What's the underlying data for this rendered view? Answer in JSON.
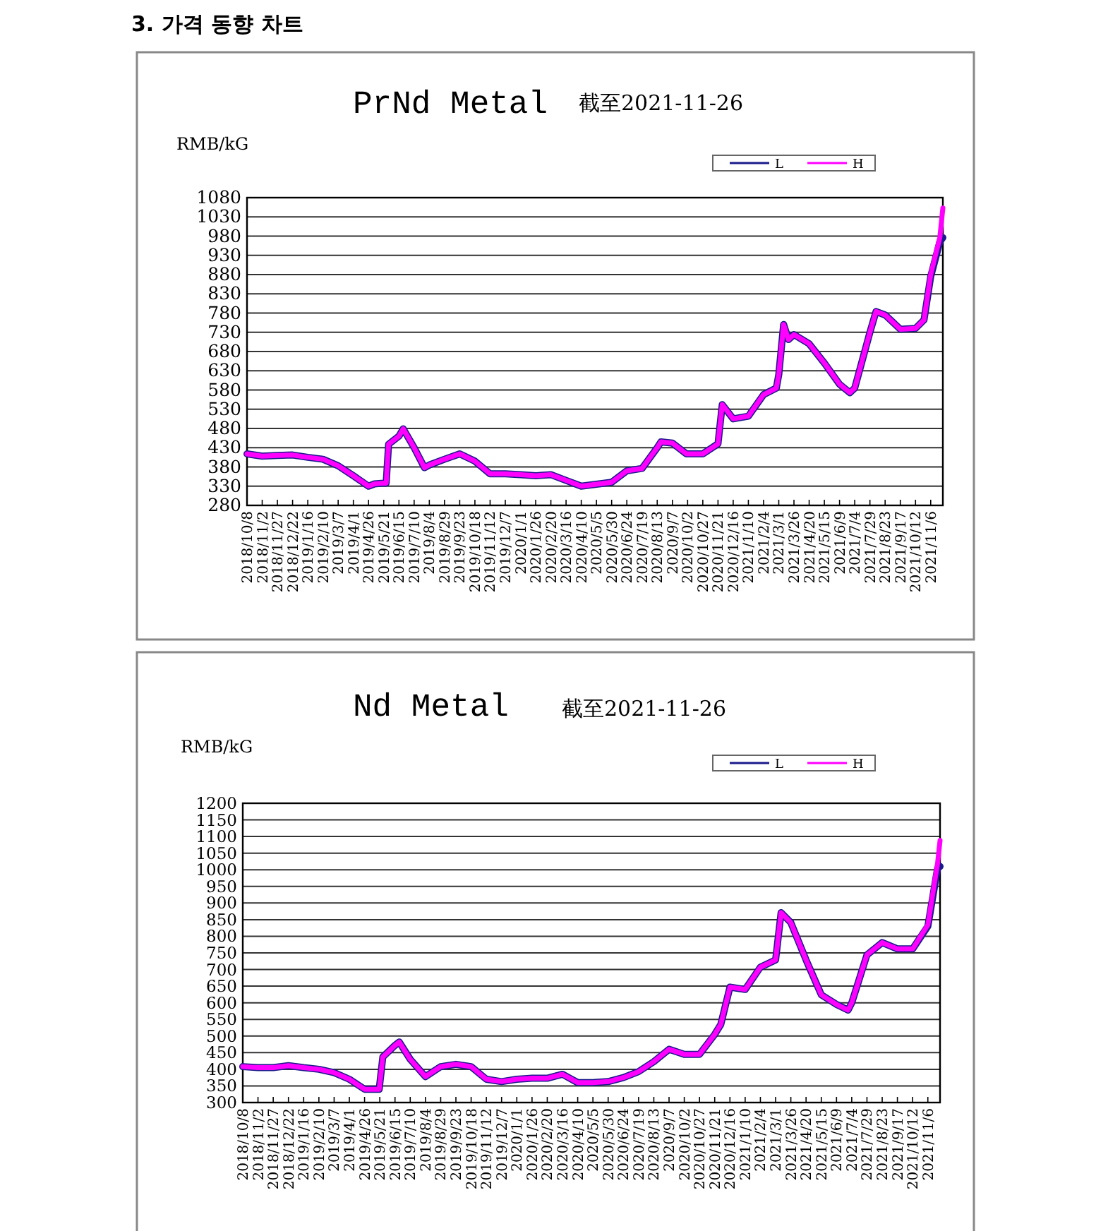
{
  "chart_data": [
    {
      "type": "line",
      "title": "PrNd Metal",
      "subtitle": "截至2021-11-26",
      "ylabel": "RMB/kG",
      "annotations": [
        "3. 가격 동향 차트"
      ],
      "grid": "y",
      "legend": "top right",
      "xlim": [
        "2018-10-08",
        "2021-11-26"
      ],
      "ylim": [
        280,
        1080
      ],
      "yticks": [
        280,
        330,
        380,
        430,
        480,
        530,
        580,
        630,
        680,
        730,
        780,
        830,
        880,
        930,
        980,
        1030,
        1080
      ],
      "xticks": [
        {
          "value": "2018-10-08",
          "label": "2018/10/8"
        },
        {
          "value": "2018-11-02",
          "label": "2018/11/2"
        },
        {
          "value": "2018-11-27",
          "label": "2018/11/27"
        },
        {
          "value": "2018-12-22",
          "label": "2018/12/22"
        },
        {
          "value": "2019-01-16",
          "label": "2019/1/16"
        },
        {
          "value": "2019-02-10",
          "label": "2019/2/10"
        },
        {
          "value": "2019-03-07",
          "label": "2019/3/7"
        },
        {
          "value": "2019-04-01",
          "label": "2019/4/1"
        },
        {
          "value": "2019-04-26",
          "label": "2019/4/26"
        },
        {
          "value": "2019-05-21",
          "label": "2019/5/21"
        },
        {
          "value": "2019-06-15",
          "label": "2019/6/15"
        },
        {
          "value": "2019-07-10",
          "label": "2019/7/10"
        },
        {
          "value": "2019-08-04",
          "label": "2019/8/4"
        },
        {
          "value": "2019-08-29",
          "label": "2019/8/29"
        },
        {
          "value": "2019-09-23",
          "label": "2019/9/23"
        },
        {
          "value": "2019-10-18",
          "label": "2019/10/18"
        },
        {
          "value": "2019-11-12",
          "label": "2019/11/12"
        },
        {
          "value": "2019-12-07",
          "label": "2019/12/7"
        },
        {
          "value": "2020-01-01",
          "label": "2020/1/1"
        },
        {
          "value": "2020-01-26",
          "label": "2020/1/26"
        },
        {
          "value": "2020-02-20",
          "label": "2020/2/20"
        },
        {
          "value": "2020-03-16",
          "label": "2020/3/16"
        },
        {
          "value": "2020-04-10",
          "label": "2020/4/10"
        },
        {
          "value": "2020-05-05",
          "label": "2020/5/5"
        },
        {
          "value": "2020-05-30",
          "label": "2020/5/30"
        },
        {
          "value": "2020-06-24",
          "label": "2020/6/24"
        },
        {
          "value": "2020-07-19",
          "label": "2020/7/19"
        },
        {
          "value": "2020-08-13",
          "label": "2020/8/13"
        },
        {
          "value": "2020-09-07",
          "label": "2020/9/7"
        },
        {
          "value": "2020-10-02",
          "label": "2020/10/2"
        },
        {
          "value": "2020-10-27",
          "label": "2020/10/27"
        },
        {
          "value": "2020-11-21",
          "label": "2020/11/21"
        },
        {
          "value": "2020-12-16",
          "label": "2020/12/16"
        },
        {
          "value": "2021-01-10",
          "label": "2021/1/10"
        },
        {
          "value": "2021-02-04",
          "label": "2021/2/4"
        },
        {
          "value": "2021-03-01",
          "label": "2021/3/1"
        },
        {
          "value": "2021-03-26",
          "label": "2021/3/26"
        },
        {
          "value": "2021-04-20",
          "label": "2021/4/20"
        },
        {
          "value": "2021-05-15",
          "label": "2021/5/15"
        },
        {
          "value": "2021-06-09",
          "label": "2021/6/9"
        },
        {
          "value": "2021-07-04",
          "label": "2021/7/4"
        },
        {
          "value": "2021-07-29",
          "label": "2021/7/29"
        },
        {
          "value": "2021-08-23",
          "label": "2021/8/23"
        },
        {
          "value": "2021-09-17",
          "label": "2021/9/17"
        },
        {
          "value": "2021-10-12",
          "label": "2021/10/12"
        },
        {
          "value": "2021-11-06",
          "label": "2021/11/6"
        }
      ],
      "series": [
        {
          "name": "L",
          "color": "#1a1a8c",
          "x": [
            "2018-10-08",
            "2018-11-02",
            "2018-11-27",
            "2018-12-22",
            "2019-01-16",
            "2019-02-10",
            "2019-03-07",
            "2019-04-01",
            "2019-04-26",
            "2019-05-06",
            "2019-05-21",
            "2019-05-25",
            "2019-05-29",
            "2019-06-15",
            "2019-06-22",
            "2019-07-10",
            "2019-07-27",
            "2019-08-04",
            "2019-08-29",
            "2019-09-23",
            "2019-10-18",
            "2019-11-12",
            "2019-12-07",
            "2020-01-01",
            "2020-01-26",
            "2020-02-20",
            "2020-03-16",
            "2020-04-10",
            "2020-05-05",
            "2020-05-30",
            "2020-06-24",
            "2020-07-19",
            "2020-08-13",
            "2020-08-19",
            "2020-09-07",
            "2020-09-30",
            "2020-10-27",
            "2020-11-21",
            "2020-11-28",
            "2020-12-16",
            "2021-01-10",
            "2021-02-04",
            "2021-02-25",
            "2021-03-01",
            "2021-03-09",
            "2021-03-17",
            "2021-03-26",
            "2021-04-20",
            "2021-05-15",
            "2021-06-09",
            "2021-06-26",
            "2021-07-04",
            "2021-07-29",
            "2021-08-08",
            "2021-08-23",
            "2021-09-17",
            "2021-10-12",
            "2021-10-26",
            "2021-11-06",
            "2021-11-21",
            "2021-11-26"
          ],
          "values": [
            414,
            408,
            410,
            411,
            405,
            400,
            383,
            357,
            330,
            336,
            338,
            338,
            439,
            460,
            479,
            430,
            378,
            385,
            400,
            414,
            395,
            362,
            362,
            360,
            357,
            360,
            345,
            330,
            335,
            340,
            370,
            376,
            430,
            445,
            442,
            414,
            414,
            440,
            542,
            505,
            512,
            568,
            585,
            620,
            750,
            711,
            724,
            700,
            650,
            595,
            573,
            585,
            730,
            784,
            775,
            738,
            740,
            762,
            875,
            965,
            976
          ]
        },
        {
          "name": "H",
          "color": "#ff00ff",
          "x": [
            "2018-10-08",
            "2018-11-02",
            "2018-11-27",
            "2018-12-22",
            "2019-01-16",
            "2019-02-10",
            "2019-03-07",
            "2019-04-01",
            "2019-04-26",
            "2019-05-06",
            "2019-05-21",
            "2019-05-25",
            "2019-05-29",
            "2019-06-15",
            "2019-06-22",
            "2019-07-10",
            "2019-07-27",
            "2019-08-04",
            "2019-08-29",
            "2019-09-23",
            "2019-10-18",
            "2019-11-12",
            "2019-12-07",
            "2020-01-01",
            "2020-01-26",
            "2020-02-20",
            "2020-03-16",
            "2020-04-10",
            "2020-05-05",
            "2020-05-30",
            "2020-06-24",
            "2020-07-19",
            "2020-08-13",
            "2020-08-19",
            "2020-09-07",
            "2020-09-30",
            "2020-10-27",
            "2020-11-21",
            "2020-11-28",
            "2020-12-16",
            "2021-01-10",
            "2021-02-04",
            "2021-02-25",
            "2021-03-01",
            "2021-03-09",
            "2021-03-17",
            "2021-03-26",
            "2021-04-20",
            "2021-05-15",
            "2021-06-09",
            "2021-06-26",
            "2021-07-04",
            "2021-07-29",
            "2021-08-08",
            "2021-08-23",
            "2021-09-17",
            "2021-10-12",
            "2021-10-26",
            "2021-11-06",
            "2021-11-21",
            "2021-11-26"
          ],
          "values": [
            414,
            408,
            410,
            411,
            405,
            400,
            383,
            357,
            330,
            336,
            338,
            338,
            439,
            460,
            479,
            430,
            378,
            385,
            400,
            414,
            395,
            362,
            362,
            360,
            357,
            360,
            345,
            330,
            335,
            340,
            370,
            376,
            430,
            445,
            442,
            414,
            414,
            440,
            542,
            505,
            512,
            568,
            585,
            620,
            750,
            711,
            724,
            700,
            650,
            595,
            573,
            585,
            730,
            784,
            775,
            738,
            740,
            762,
            880,
            976,
            1053
          ]
        }
      ]
    },
    {
      "type": "line",
      "title": "Nd Metal",
      "subtitle": "截至2021-11-26",
      "ylabel": "RMB/kG",
      "grid": "y",
      "legend": "top right",
      "xlim": [
        "2018-10-08",
        "2021-11-26"
      ],
      "ylim": [
        300,
        1200
      ],
      "yticks": [
        300,
        350,
        400,
        450,
        500,
        550,
        600,
        650,
        700,
        750,
        800,
        850,
        900,
        950,
        1000,
        1050,
        1100,
        1150,
        1200
      ],
      "xticks": [
        {
          "value": "2018-10-08",
          "label": "2018/10/8"
        },
        {
          "value": "2018-11-02",
          "label": "2018/11/2"
        },
        {
          "value": "2018-11-27",
          "label": "2018/11/27"
        },
        {
          "value": "2018-12-22",
          "label": "2018/12/22"
        },
        {
          "value": "2019-01-16",
          "label": "2019/1/16"
        },
        {
          "value": "2019-02-10",
          "label": "2019/2/10"
        },
        {
          "value": "2019-03-07",
          "label": "2019/3/7"
        },
        {
          "value": "2019-04-01",
          "label": "2019/4/1"
        },
        {
          "value": "2019-04-26",
          "label": "2019/4/26"
        },
        {
          "value": "2019-05-21",
          "label": "2019/5/21"
        },
        {
          "value": "2019-06-15",
          "label": "2019/6/15"
        },
        {
          "value": "2019-07-10",
          "label": "2019/7/10"
        },
        {
          "value": "2019-08-04",
          "label": "2019/8/4"
        },
        {
          "value": "2019-08-29",
          "label": "2019/8/29"
        },
        {
          "value": "2019-09-23",
          "label": "2019/9/23"
        },
        {
          "value": "2019-10-18",
          "label": "2019/10/18"
        },
        {
          "value": "2019-11-12",
          "label": "2019/11/12"
        },
        {
          "value": "2019-12-07",
          "label": "2019/12/7"
        },
        {
          "value": "2020-01-01",
          "label": "2020/1/1"
        },
        {
          "value": "2020-01-26",
          "label": "2020/1/26"
        },
        {
          "value": "2020-02-20",
          "label": "2020/2/20"
        },
        {
          "value": "2020-03-16",
          "label": "2020/3/16"
        },
        {
          "value": "2020-04-10",
          "label": "2020/4/10"
        },
        {
          "value": "2020-05-05",
          "label": "2020/5/5"
        },
        {
          "value": "2020-05-30",
          "label": "2020/5/30"
        },
        {
          "value": "2020-06-24",
          "label": "2020/6/24"
        },
        {
          "value": "2020-07-19",
          "label": "2020/7/19"
        },
        {
          "value": "2020-08-13",
          "label": "2020/8/13"
        },
        {
          "value": "2020-09-07",
          "label": "2020/9/7"
        },
        {
          "value": "2020-10-02",
          "label": "2020/10/2"
        },
        {
          "value": "2020-10-27",
          "label": "2020/10/27"
        },
        {
          "value": "2020-11-21",
          "label": "2020/11/21"
        },
        {
          "value": "2020-12-16",
          "label": "2020/12/16"
        },
        {
          "value": "2021-01-10",
          "label": "2021/1/10"
        },
        {
          "value": "2021-02-04",
          "label": "2021/2/4"
        },
        {
          "value": "2021-03-01",
          "label": "2021/3/1"
        },
        {
          "value": "2021-03-26",
          "label": "2021/3/26"
        },
        {
          "value": "2021-04-20",
          "label": "2021/4/20"
        },
        {
          "value": "2021-05-15",
          "label": "2021/5/15"
        },
        {
          "value": "2021-06-09",
          "label": "2021/6/9"
        },
        {
          "value": "2021-07-04",
          "label": "2021/7/4"
        },
        {
          "value": "2021-07-29",
          "label": "2021/7/29"
        },
        {
          "value": "2021-08-23",
          "label": "2021/8/23"
        },
        {
          "value": "2021-09-17",
          "label": "2021/9/17"
        },
        {
          "value": "2021-10-12",
          "label": "2021/10/12"
        },
        {
          "value": "2021-11-06",
          "label": "2021/11/6"
        }
      ],
      "series": [
        {
          "name": "L",
          "color": "#1a1a8c",
          "x": [
            "2018-10-08",
            "2018-11-02",
            "2018-11-27",
            "2018-12-22",
            "2019-01-16",
            "2019-02-10",
            "2019-03-07",
            "2019-04-01",
            "2019-04-26",
            "2019-05-20",
            "2019-05-26",
            "2019-06-15",
            "2019-06-22",
            "2019-07-10",
            "2019-08-04",
            "2019-08-29",
            "2019-09-23",
            "2019-10-18",
            "2019-11-12",
            "2019-12-07",
            "2020-01-01",
            "2020-01-26",
            "2020-02-20",
            "2020-03-16",
            "2020-04-10",
            "2020-05-05",
            "2020-05-30",
            "2020-06-24",
            "2020-07-19",
            "2020-08-13",
            "2020-09-07",
            "2020-10-02",
            "2020-10-27",
            "2020-11-21",
            "2020-12-01",
            "2020-12-16",
            "2021-01-10",
            "2021-02-04",
            "2021-03-01",
            "2021-03-10",
            "2021-03-26",
            "2021-04-20",
            "2021-05-15",
            "2021-06-09",
            "2021-06-28",
            "2021-07-04",
            "2021-07-29",
            "2021-08-23",
            "2021-09-17",
            "2021-10-12",
            "2021-11-06",
            "2021-11-22",
            "2021-11-26"
          ],
          "values": [
            408,
            405,
            405,
            411,
            405,
            400,
            390,
            370,
            340,
            340,
            437,
            472,
            482,
            430,
            378,
            408,
            415,
            408,
            370,
            363,
            370,
            373,
            373,
            385,
            360,
            360,
            363,
            375,
            393,
            423,
            460,
            445,
            445,
            505,
            535,
            647,
            640,
            707,
            729,
            871,
            841,
            729,
            624,
            595,
            578,
            600,
            744,
            781,
            762,
            762,
            830,
            1005,
            1010
          ]
        },
        {
          "name": "H",
          "color": "#ff00ff",
          "x": [
            "2018-10-08",
            "2018-11-02",
            "2018-11-27",
            "2018-12-22",
            "2019-01-16",
            "2019-02-10",
            "2019-03-07",
            "2019-04-01",
            "2019-04-26",
            "2019-05-20",
            "2019-05-26",
            "2019-06-15",
            "2019-06-22",
            "2019-07-10",
            "2019-08-04",
            "2019-08-29",
            "2019-09-23",
            "2019-10-18",
            "2019-11-12",
            "2019-12-07",
            "2020-01-01",
            "2020-01-26",
            "2020-02-20",
            "2020-03-16",
            "2020-04-10",
            "2020-05-05",
            "2020-05-30",
            "2020-06-24",
            "2020-07-19",
            "2020-08-13",
            "2020-09-07",
            "2020-10-02",
            "2020-10-27",
            "2020-11-21",
            "2020-12-01",
            "2020-12-16",
            "2021-01-10",
            "2021-02-04",
            "2021-03-01",
            "2021-03-10",
            "2021-03-26",
            "2021-04-20",
            "2021-05-15",
            "2021-06-09",
            "2021-06-28",
            "2021-07-04",
            "2021-07-29",
            "2021-08-23",
            "2021-09-17",
            "2021-10-12",
            "2021-11-06",
            "2021-11-22",
            "2021-11-26"
          ],
          "values": [
            408,
            405,
            405,
            411,
            405,
            400,
            390,
            370,
            340,
            340,
            437,
            472,
            482,
            430,
            378,
            408,
            415,
            408,
            370,
            363,
            370,
            373,
            373,
            385,
            360,
            360,
            363,
            375,
            393,
            423,
            460,
            445,
            445,
            505,
            535,
            647,
            640,
            707,
            729,
            871,
            841,
            729,
            624,
            595,
            578,
            600,
            744,
            781,
            762,
            762,
            834,
            1020,
            1088
          ]
        }
      ]
    }
  ]
}
